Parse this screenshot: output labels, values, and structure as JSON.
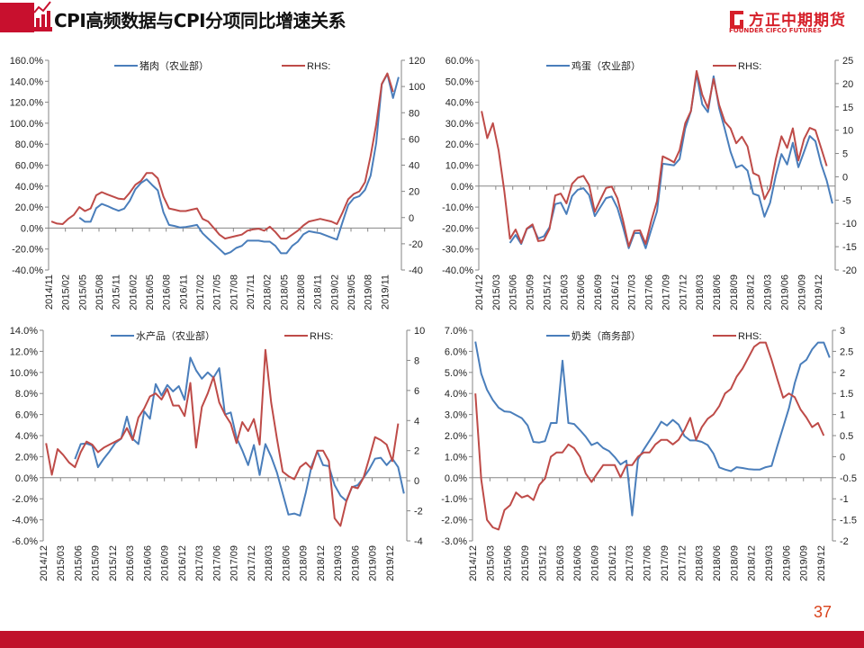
{
  "header": {
    "title": "CPI高频数据与CPI分项同比增速关系",
    "logo_cn": "方正中期期货",
    "logo_en": "FOUNDER CIFCO FUTURES",
    "accent": "#c8102e"
  },
  "footer": {
    "page_number": "37",
    "bar_color": "#c0122b"
  },
  "colors": {
    "series_left": "#4a7ebb",
    "series_right": "#be4b48",
    "axis": "#868686"
  },
  "chart_data": [
    {
      "type": "line",
      "title": "",
      "legend_placement": "top",
      "categories": [
        "2014/11",
        "2014/12",
        "2015/01",
        "2015/02",
        "2015/03",
        "2015/04",
        "2015/05",
        "2015/06",
        "2015/07",
        "2015/08",
        "2015/09",
        "2015/10",
        "2015/11",
        "2015/12",
        "2016/01",
        "2016/02",
        "2016/03",
        "2016/04",
        "2016/05",
        "2016/06",
        "2016/07",
        "2016/08",
        "2016/09",
        "2016/10",
        "2016/11",
        "2016/12",
        "2017/01",
        "2017/02",
        "2017/03",
        "2017/04",
        "2017/05",
        "2017/06",
        "2017/07",
        "2017/08",
        "2017/09",
        "2017/10",
        "2017/11",
        "2017/12",
        "2018/01",
        "2018/02",
        "2018/03",
        "2018/04",
        "2018/05",
        "2018/06",
        "2018/07",
        "2018/08",
        "2018/09",
        "2018/10",
        "2018/11",
        "2018/12",
        "2019/01",
        "2019/02",
        "2019/03",
        "2019/04",
        "2019/05",
        "2019/06",
        "2019/07",
        "2019/08",
        "2019/09",
        "2019/10",
        "2019/11",
        "2019/12",
        "2020/01"
      ],
      "left_axis": {
        "min": -40,
        "max": 160,
        "unit": "%",
        "labels": [
          "-40.0%",
          "-20.0%",
          "0.0%",
          "20.0%",
          "40.0%",
          "60.0%",
          "80.0%",
          "100.0%",
          "120.0%",
          "140.0%",
          "160.0%"
        ]
      },
      "right_axis": {
        "min": -40,
        "max": 120,
        "labels": [
          "-40",
          "-20",
          "0",
          "20",
          "40",
          "60",
          "80",
          "100",
          "120"
        ]
      },
      "series": [
        {
          "name": "猪肉（农业部）",
          "axis": "left",
          "values": [
            null,
            null,
            null,
            null,
            null,
            10,
            6,
            6,
            19,
            23,
            21,
            18.5,
            16.5,
            18.5,
            26,
            37,
            43,
            46.5,
            41,
            36,
            15,
            3,
            2,
            0.5,
            1,
            2,
            3,
            -5,
            -10,
            -15,
            -20,
            -25,
            -23,
            -19,
            -17,
            -12,
            -12,
            -12,
            -13,
            -13,
            -17,
            -24,
            -24,
            -17,
            -13,
            -6,
            -3,
            -4,
            -5,
            -7,
            -9,
            -11,
            6,
            22,
            28.5,
            30.5,
            36.5,
            50,
            81,
            137,
            147,
            124,
            144
          ]
        },
        {
          "name": "RHS:",
          "axis": "right",
          "values": [
            -3,
            -4.6,
            -5,
            -1,
            2,
            8,
            5,
            7,
            17,
            19.4,
            17.6,
            16,
            14.4,
            14,
            19,
            25,
            28,
            34,
            34,
            30,
            16,
            7,
            6,
            5,
            5,
            6,
            7,
            -1,
            -3,
            -8,
            -13,
            -16,
            -15,
            -14,
            -13,
            -10,
            -9,
            -8.5,
            -10,
            -7,
            -11,
            -16,
            -16,
            -13,
            -10,
            -6,
            -3,
            -2,
            -1,
            -2,
            -3,
            -5,
            4,
            14,
            18,
            20,
            27,
            47,
            71,
            102,
            110,
            96,
            null
          ]
        }
      ]
    },
    {
      "type": "line",
      "title": "",
      "legend_placement": "top",
      "categories": [
        "2014/12",
        "2015/01",
        "2015/02",
        "2015/03",
        "2015/04",
        "2015/05",
        "2015/06",
        "2015/07",
        "2015/08",
        "2015/09",
        "2015/10",
        "2015/11",
        "2015/12",
        "2016/01",
        "2016/02",
        "2016/03",
        "2016/04",
        "2016/05",
        "2016/06",
        "2016/07",
        "2016/08",
        "2016/09",
        "2016/10",
        "2016/11",
        "2016/12",
        "2017/01",
        "2017/02",
        "2017/03",
        "2017/04",
        "2017/05",
        "2017/06",
        "2017/07",
        "2017/08",
        "2017/09",
        "2017/10",
        "2017/11",
        "2017/12",
        "2018/01",
        "2018/02",
        "2018/03",
        "2018/04",
        "2018/05",
        "2018/06",
        "2018/07",
        "2018/08",
        "2018/09",
        "2018/10",
        "2018/11",
        "2018/12",
        "2019/01",
        "2019/02",
        "2019/03",
        "2019/04",
        "2019/05",
        "2019/06",
        "2019/07",
        "2019/08",
        "2019/09",
        "2019/10",
        "2019/11",
        "2019/12",
        "2020/01",
        "2020/02"
      ],
      "left_axis": {
        "min": -40,
        "max": 60,
        "unit": "%",
        "labels": [
          "-40.0%",
          "-30.0%",
          "-20.0%",
          "-10.0%",
          "0.0%",
          "10.0%",
          "20.0%",
          "30.0%",
          "40.0%",
          "50.0%",
          "60.0%"
        ]
      },
      "right_axis": {
        "min": -20,
        "max": 25,
        "labels": [
          "-20",
          "-15",
          "-10",
          "-5",
          "0",
          "5",
          "10",
          "15",
          "20",
          "25"
        ]
      },
      "series": [
        {
          "name": "鸡蛋（农业部）",
          "axis": "left",
          "values": [
            null,
            null,
            null,
            null,
            null,
            -27.1,
            -23.3,
            -27.6,
            -20.4,
            -19,
            -25,
            -23.9,
            -19.6,
            -8.6,
            -7.9,
            -13.3,
            -4.7,
            -1.7,
            -1,
            -4.3,
            -14.3,
            -10,
            -5.7,
            -5,
            -10.4,
            -19.6,
            -29.6,
            -22.4,
            -22.4,
            -29.6,
            -20.7,
            -12.1,
            10.7,
            10.3,
            9.9,
            12.9,
            27.6,
            35.7,
            53.6,
            39,
            35.3,
            52.4,
            37.1,
            27.1,
            16.4,
            8.9,
            10,
            7.4,
            -3.6,
            -4.6,
            -14.6,
            -7.9,
            5,
            15.3,
            10.3,
            20.7,
            9,
            16.4,
            23.9,
            21.4,
            10.7,
            2.6,
            -8.3
          ]
        },
        {
          "name": "RHS:",
          "axis": "right",
          "values": [
            14.1,
            8.3,
            11.5,
            5.7,
            -3,
            -13.3,
            -11.3,
            -14.2,
            -11.1,
            -10.2,
            -13.8,
            -13.6,
            -11.2,
            -4,
            -3.6,
            -5.7,
            -1.5,
            -0.2,
            0.2,
            -1.8,
            -7.5,
            -4.9,
            -2.4,
            -2.1,
            -4.6,
            -9.4,
            -14.9,
            -11.6,
            -11.5,
            -14.4,
            -9.4,
            -5.2,
            4.4,
            3.8,
            3.1,
            5.7,
            11.5,
            14.1,
            22.7,
            17.6,
            14.7,
            21,
            15.4,
            11.8,
            10.4,
            7.2,
            8.6,
            6.5,
            0.8,
            0.2,
            -4.8,
            -2.5,
            3.8,
            8.7,
            6.2,
            10.4,
            3.5,
            8.1,
            10.5,
            10,
            6.2,
            2.3,
            null
          ]
        }
      ]
    },
    {
      "type": "line",
      "title": "",
      "legend_placement": "top",
      "categories": [
        "2014/12",
        "2015/01",
        "2015/02",
        "2015/03",
        "2015/04",
        "2015/05",
        "2015/06",
        "2015/07",
        "2015/08",
        "2015/09",
        "2015/10",
        "2015/11",
        "2015/12",
        "2016/01",
        "2016/02",
        "2016/03",
        "2016/04",
        "2016/05",
        "2016/06",
        "2016/07",
        "2016/08",
        "2016/09",
        "2016/10",
        "2016/11",
        "2016/12",
        "2017/01",
        "2017/02",
        "2017/03",
        "2017/04",
        "2017/05",
        "2017/06",
        "2017/07",
        "2017/08",
        "2017/09",
        "2017/10",
        "2017/11",
        "2017/12",
        "2018/01",
        "2018/02",
        "2018/03",
        "2018/04",
        "2018/05",
        "2018/06",
        "2018/07",
        "2018/08",
        "2018/09",
        "2018/10",
        "2018/11",
        "2018/12",
        "2019/01",
        "2019/02",
        "2019/03",
        "2019/04",
        "2019/05",
        "2019/06",
        "2019/07",
        "2019/08",
        "2019/09",
        "2019/10",
        "2019/11",
        "2019/12",
        "2020/01",
        "2020/02"
      ],
      "left_axis": {
        "min": -6,
        "max": 14,
        "unit": "%",
        "labels": [
          "-6.0%",
          "-4.0%",
          "-2.0%",
          "0.0%",
          "2.0%",
          "4.0%",
          "6.0%",
          "8.0%",
          "10.0%",
          "12.0%",
          "14.0%"
        ]
      },
      "right_axis": {
        "min": -4,
        "max": 10,
        "labels": [
          "-4",
          "-2",
          "0",
          "2",
          "4",
          "6",
          "8",
          "10"
        ]
      },
      "series": [
        {
          "name": "水产品（农业部）",
          "axis": "left",
          "values": [
            null,
            null,
            null,
            null,
            null,
            1.77,
            3.2,
            3.25,
            3.05,
            1,
            1.8,
            2.5,
            3.3,
            3.7,
            5.8,
            3.7,
            3.2,
            6.3,
            5.6,
            8.9,
            7.8,
            8.8,
            8.2,
            8.7,
            7.4,
            11.4,
            10.2,
            9.4,
            10,
            9.5,
            10.4,
            6,
            6.2,
            3.8,
            2.6,
            1.2,
            3.1,
            0.26,
            3.2,
            2,
            0.5,
            -1.5,
            -3.5,
            -3.4,
            -3.6,
            -1.4,
            1.1,
            2.5,
            1.2,
            1.1,
            -0.7,
            -1.7,
            -2.2,
            -0.9,
            -0.7,
            0,
            0.8,
            1.8,
            1.9,
            1.2,
            1.8,
            1,
            -1.5
          ]
        },
        {
          "name": "RHS:",
          "axis": "right",
          "values": [
            2.5,
            0.4,
            2.1,
            1.7,
            1.2,
            0.9,
            1.9,
            2.6,
            2.4,
            1.9,
            2.2,
            2.4,
            2.6,
            2.8,
            3.5,
            2.7,
            4.2,
            4.8,
            5.6,
            5.8,
            5.4,
            6.1,
            5,
            5,
            4.3,
            6.5,
            2.2,
            4.9,
            5.8,
            6.9,
            5.2,
            4.4,
            3.8,
            2.5,
            3.9,
            3.3,
            4.1,
            2.4,
            8.7,
            5.2,
            2.8,
            0.6,
            0.3,
            0.1,
            0.9,
            1.2,
            0.8,
            2,
            2,
            1.3,
            -2.5,
            -3,
            -1.4,
            -0.4,
            -0.5,
            0.2,
            1.5,
            2.9,
            2.7,
            2.4,
            1.3,
            3.8,
            null
          ]
        }
      ]
    },
    {
      "type": "line",
      "title": "",
      "legend_placement": "top",
      "categories": [
        "2014/12",
        "2015/01",
        "2015/02",
        "2015/03",
        "2015/04",
        "2015/05",
        "2015/06",
        "2015/07",
        "2015/08",
        "2015/09",
        "2015/10",
        "2015/11",
        "2015/12",
        "2016/01",
        "2016/02",
        "2016/03",
        "2016/04",
        "2016/05",
        "2016/06",
        "2016/07",
        "2016/08",
        "2016/09",
        "2016/10",
        "2016/11",
        "2016/12",
        "2017/01",
        "2017/02",
        "2017/03",
        "2017/04",
        "2017/05",
        "2017/06",
        "2017/07",
        "2017/08",
        "2017/09",
        "2017/10",
        "2017/11",
        "2017/12",
        "2018/01",
        "2018/02",
        "2018/03",
        "2018/04",
        "2018/05",
        "2018/06",
        "2018/07",
        "2018/08",
        "2018/09",
        "2018/10",
        "2018/11",
        "2018/12",
        "2019/01",
        "2019/02",
        "2019/03",
        "2019/04",
        "2019/05",
        "2019/06",
        "2019/07",
        "2019/08",
        "2019/09",
        "2019/10",
        "2019/11",
        "2019/12",
        "2020/01"
      ],
      "left_axis": {
        "min": -3,
        "max": 7,
        "unit": "%",
        "labels": [
          "-3.0%",
          "-2.0%",
          "-1.0%",
          "0.0%",
          "1.0%",
          "2.0%",
          "3.0%",
          "4.0%",
          "5.0%",
          "6.0%",
          "7.0%"
        ]
      },
      "right_axis": {
        "min": -2,
        "max": 3,
        "labels": [
          "-2",
          "-1.5",
          "-1",
          "-0.5",
          "0",
          "0.5",
          "1",
          "1.5",
          "2",
          "2.5",
          "3"
        ]
      },
      "series": [
        {
          "name": "奶类（商务部）",
          "axis": "left",
          "values": [
            6.46,
            4.94,
            4.18,
            3.69,
            3.33,
            3.15,
            3.12,
            2.97,
            2.83,
            2.48,
            1.7,
            1.67,
            1.74,
            2.6,
            2.6,
            5.56,
            2.6,
            2.55,
            2.26,
            1.95,
            1.55,
            1.67,
            1.41,
            1.27,
            0.98,
            0.63,
            0.81,
            -1.79,
            0.87,
            1.34,
            1.77,
            2.19,
            2.66,
            2.48,
            2.75,
            2.52,
            1.98,
            1.77,
            1.77,
            1.7,
            1.55,
            1.15,
            0.49,
            0.39,
            0.31,
            0.5,
            0.46,
            0.41,
            0.39,
            0.39,
            0.5,
            0.56,
            1.5,
            2.4,
            3.3,
            4.5,
            5.39,
            5.6,
            6.1,
            6.42,
            6.42,
            5.7
          ]
        },
        {
          "name": "RHS:",
          "axis": "right",
          "values": [
            1.5,
            -0.54,
            -1.5,
            -1.68,
            -1.73,
            -1.27,
            -1.15,
            -0.85,
            -0.97,
            -0.92,
            -1.03,
            -0.67,
            -0.52,
            0,
            0.1,
            0.1,
            0.29,
            0.2,
            0,
            -0.4,
            -0.6,
            -0.4,
            -0.2,
            -0.2,
            -0.2,
            -0.49,
            -0.2,
            -0.2,
            0,
            0.1,
            0.1,
            0.29,
            0.4,
            0.4,
            0.29,
            0.4,
            0.63,
            0.92,
            0.4,
            0.7,
            0.9,
            1,
            1.2,
            1.5,
            1.61,
            1.9,
            2.09,
            2.35,
            2.61,
            2.71,
            2.71,
            2.3,
            1.84,
            1.4,
            1.5,
            1.41,
            1.12,
            0.93,
            0.7,
            0.8,
            0.5,
            null
          ]
        }
      ]
    }
  ]
}
